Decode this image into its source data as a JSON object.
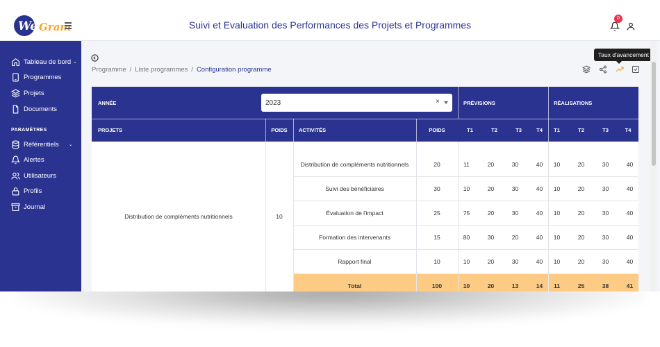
{
  "header": {
    "logo_web": "Web",
    "logo_gram": "Gram",
    "title": "Suivi et Evaluation des Performances des Projets et Programmes",
    "notification_count": "0"
  },
  "sidebar": {
    "items": [
      {
        "label": "Tableau de bord",
        "icon": "home-icon"
      },
      {
        "label": "Programmes",
        "icon": "tablet-icon"
      },
      {
        "label": "Projets",
        "icon": "layers-icon"
      },
      {
        "label": "Documents",
        "icon": "file-icon"
      }
    ],
    "section_label": "PARAMÈTRES",
    "settings_items": [
      {
        "label": "Référentiels",
        "icon": "database-icon"
      },
      {
        "label": "Alertes",
        "icon": "bell-icon"
      },
      {
        "label": "Utilisateurs",
        "icon": "users-icon"
      },
      {
        "label": "Profils",
        "icon": "lock-icon"
      },
      {
        "label": "Journal",
        "icon": "archive-icon"
      }
    ]
  },
  "breadcrumb": {
    "items": [
      "Programme",
      "Liste programmes"
    ],
    "current": "Configuration programme",
    "separator": "/"
  },
  "tooltip": "Taux d'avancement",
  "table": {
    "annee_label": "ANNÉE",
    "year_value": "2023",
    "clear_glyph": "×",
    "previsions_label": "PRÉVISIONS",
    "realisations_label": "RÉALISATIONS",
    "col_projets": "PROJETS",
    "col_poids": "POIDS",
    "col_activites": "ACTIVITÉS",
    "col_poids2": "POIDS",
    "quarters": [
      "T1",
      "T2",
      "T3",
      "T4"
    ],
    "project_name": "Distribution de compléments nutritionnels",
    "project_poids": "10",
    "rows": [
      {
        "activite": "Distribution de compléments nutritionnels",
        "poids": "20",
        "prev": [
          "11",
          "20",
          "30",
          "40"
        ],
        "real": [
          "10",
          "20",
          "30",
          "40"
        ]
      },
      {
        "activite": "Suivi des bénéficiaires",
        "poids": "30",
        "prev": [
          "10",
          "20",
          "30",
          "40"
        ],
        "real": [
          "10",
          "20",
          "30",
          "40"
        ]
      },
      {
        "activite": "Évaluation de l'impact",
        "poids": "25",
        "prev": [
          "75",
          "20",
          "30",
          "40"
        ],
        "real": [
          "10",
          "20",
          "30",
          "40"
        ]
      },
      {
        "activite": "Formation des intervenants",
        "poids": "15",
        "prev": [
          "80",
          "30",
          "20",
          "40"
        ],
        "real": [
          "10",
          "20",
          "30",
          "40"
        ]
      },
      {
        "activite": "Rapport final",
        "poids": "10",
        "prev": [
          "10",
          "20",
          "30",
          "40"
        ],
        "real": [
          "10",
          "20",
          "30",
          "40"
        ]
      }
    ],
    "total": {
      "label": "Total",
      "poids": "100",
      "prev": [
        "10",
        "20",
        "13",
        "14"
      ],
      "real": [
        "11",
        "25",
        "38",
        "41"
      ]
    }
  },
  "colors": {
    "primary": "#2b3390",
    "accent": "#f6a623",
    "total_bg": "#fdcb84",
    "badge": "#e7344f"
  }
}
